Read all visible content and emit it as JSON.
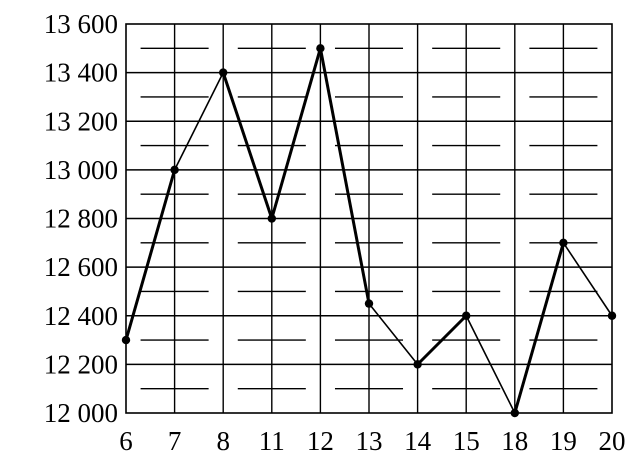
{
  "chart_data": {
    "type": "line",
    "title": "",
    "xlabel": "",
    "ylabel": "",
    "categories": [
      "6",
      "7",
      "8",
      "11",
      "12",
      "13",
      "14",
      "15",
      "18",
      "19",
      "20"
    ],
    "series": [
      {
        "values": [
          12300,
          13000,
          13400,
          12800,
          13500,
          12450,
          12200,
          12400,
          12000,
          12700,
          12400
        ]
      }
    ],
    "ylim": [
      12000,
      13600
    ],
    "y_major_step": 200,
    "y_minor_step": 100,
    "y_tick_labels": [
      "12 000",
      "12 200",
      "12 400",
      "12 600",
      "12 800",
      "13 000",
      "13 200",
      "13 400",
      "13 600"
    ],
    "grid": true,
    "legend": "none",
    "line_color": "#000000"
  }
}
